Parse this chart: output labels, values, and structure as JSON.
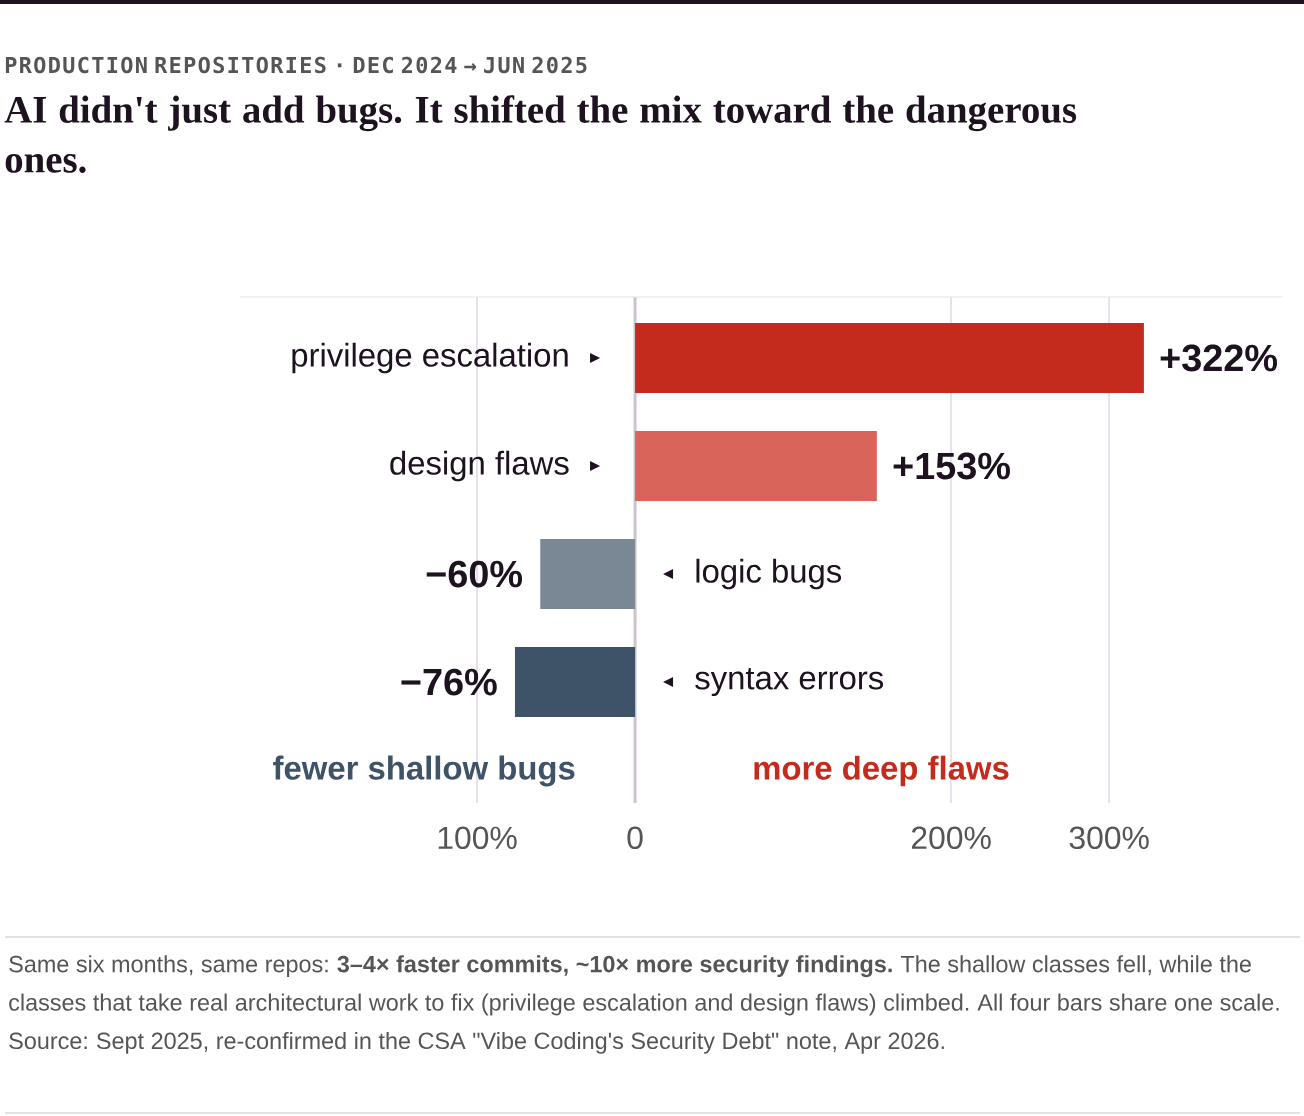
{
  "chart_data": {
    "type": "bar",
    "orientation": "horizontal",
    "subtitle": "PRODUCTION REPOSITORIES · DEC 2024 → JUN 2025",
    "title": "AI didn't just add bugs. It shifted the mix toward the dangerous ones.",
    "categories": [
      "privilege escalation",
      "design flaws",
      "logic bugs",
      "syntax errors"
    ],
    "values": [
      322,
      153,
      -60,
      -76
    ],
    "colors": [
      "#c42b1c",
      "#d9655a",
      "#7a8896",
      "#3e5268"
    ],
    "value_labels": [
      "+322%",
      "+153%",
      "−60%",
      "−76%"
    ],
    "xlim": [
      -250,
      410
    ],
    "xticks": [
      {
        "value": -100,
        "label": "100%"
      },
      0,
      {
        "value": 200,
        "label": "200%"
      },
      {
        "value": 300,
        "label": "300%"
      }
    ],
    "grid": "x",
    "annotations": [
      "fewer shallow bugs",
      "more deep flaws",
      "Same six months, same repos: **3–4× faster commits, ~10× more security findings.** The shallow classes fell, while the classes that take real architectural work to fix (privilege escalation and design flaws) climbed. All four bars share one scale. Source: Sept 2025, re-confirmed in the CSA \"Vibe Coding's Security Debt\" note, Apr 2026."
    ]
  }
}
